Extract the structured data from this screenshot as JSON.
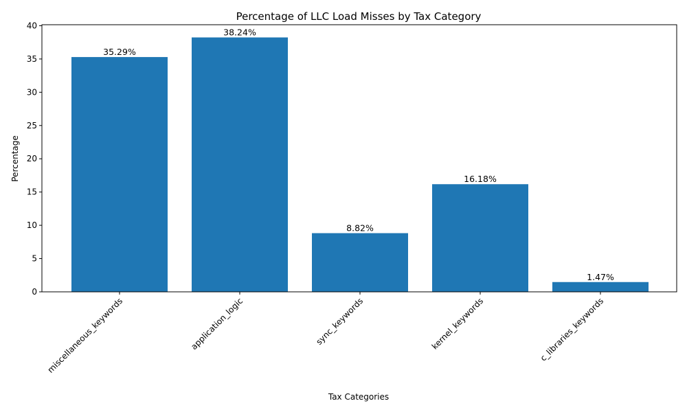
{
  "chart_data": {
    "type": "bar",
    "title": "Percentage of LLC Load Misses by Tax Category",
    "xlabel": "Tax Categories",
    "ylabel": "Percentage",
    "categories": [
      "miscellaneous_keywords",
      "application_logic",
      "sync_keywords",
      "kernel_keywords",
      "c_libraries_keywords"
    ],
    "values": [
      35.29,
      38.24,
      8.82,
      16.18,
      1.47
    ],
    "value_labels": [
      "35.29%",
      "38.24%",
      "8.82%",
      "16.18%",
      "1.47%"
    ],
    "ylim": [
      0,
      40.15
    ],
    "yticks": [
      0,
      5,
      10,
      15,
      20,
      25,
      30,
      35,
      40
    ],
    "xtick_rotation_deg": 45,
    "grid": false,
    "bar_color": "#1f77b4"
  }
}
